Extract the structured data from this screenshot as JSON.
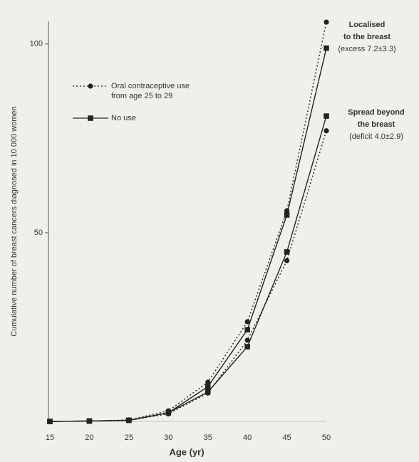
{
  "chart_data": {
    "type": "line",
    "y_label": "Cumulative number of breast cancers diagnosed in 10 000 women",
    "x_label": "Age (yr)",
    "x": [
      15,
      20,
      25,
      30,
      35,
      40,
      45,
      50
    ],
    "xlim": [
      15,
      50
    ],
    "xticks": [
      15,
      20,
      25,
      30,
      35,
      40,
      45,
      50
    ],
    "ylim": [
      0,
      106
    ],
    "yticks": [
      50,
      100
    ],
    "color": "#222222",
    "legend": [
      {
        "label": [
          "Oral contraceptive use",
          "from age 25 to 29"
        ],
        "style": "dotted",
        "marker": "circle"
      },
      {
        "label": [
          "No use"
        ],
        "style": "solid",
        "marker": "square"
      }
    ],
    "annotations": [
      {
        "title": [
          "Localised",
          "to the breast"
        ],
        "note": "(excess 7.2±3.3)"
      },
      {
        "title": [
          "Spread beyond",
          "the breast"
        ],
        "note": "(deficit 4.0±2.9)"
      }
    ],
    "series": [
      {
        "style": "dotted",
        "marker": "circle",
        "values": [
          0,
          0.1,
          0.4,
          2.8,
          10.4,
          26.4,
          55.8,
          105.8
        ]
      },
      {
        "style": "solid",
        "marker": "square",
        "values": [
          0,
          0.1,
          0.3,
          2.3,
          9.2,
          24.3,
          54.7,
          98.9
        ]
      },
      {
        "style": "solid",
        "marker": "square",
        "values": [
          0,
          0.1,
          0.3,
          2.3,
          7.8,
          19.8,
          44.9,
          80.9
        ]
      },
      {
        "style": "dotted",
        "marker": "circle",
        "values": [
          0,
          0.1,
          0.3,
          2.0,
          7.5,
          21.5,
          42.6,
          77.0
        ]
      }
    ]
  }
}
